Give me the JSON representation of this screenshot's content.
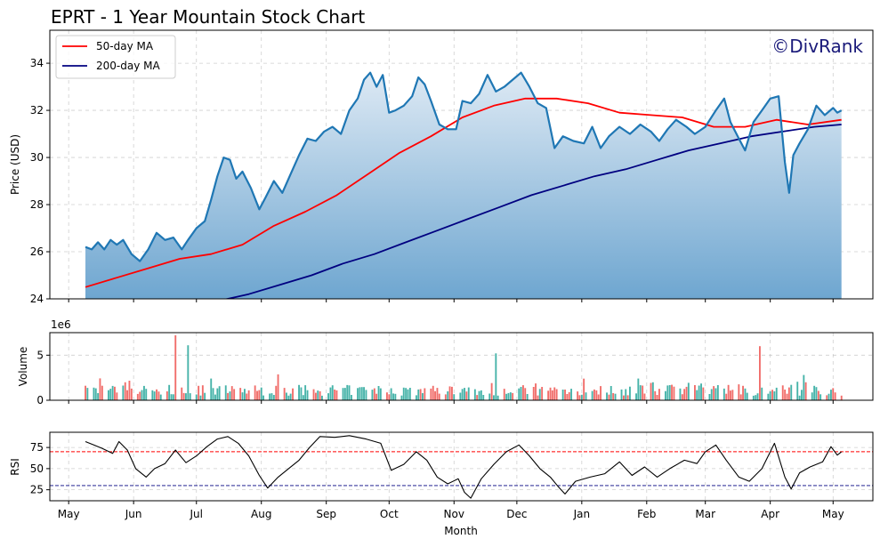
{
  "title": "EPRT - 1 Year Mountain Stock Chart",
  "watermark": "©DivRank",
  "colors": {
    "price_line": "#1f77b4",
    "area_top": "#dde9f4",
    "area_bottom": "#6ea6d0",
    "ma50": "#ff0000",
    "ma200": "#000080",
    "vol_up": "#26a69a",
    "vol_down": "#ef5350",
    "rsi_line": "#000000",
    "rsi_over": "#ff0000",
    "rsi_under": "#000080"
  },
  "chart_data": [
    {
      "panel": "price",
      "type": "area",
      "ylabel": "Price (USD)",
      "ylim": [
        24,
        35.4
      ],
      "yticks": [
        24,
        26,
        28,
        30,
        32,
        34
      ],
      "grid": true,
      "legend_position": "top-left",
      "legend": [
        "50-day MA",
        "200-day MA"
      ],
      "series": [
        {
          "name": "Price",
          "points": [
            [
              "2024-05-09",
              26.2
            ],
            [
              "2024-05-12",
              26.1
            ],
            [
              "2024-05-15",
              26.4
            ],
            [
              "2024-05-18",
              26.1
            ],
            [
              "2024-05-21",
              26.5
            ],
            [
              "2024-05-24",
              26.3
            ],
            [
              "2024-05-27",
              26.5
            ],
            [
              "2024-05-31",
              25.9
            ],
            [
              "2024-06-04",
              25.6
            ],
            [
              "2024-06-08",
              26.1
            ],
            [
              "2024-06-12",
              26.8
            ],
            [
              "2024-06-16",
              26.5
            ],
            [
              "2024-06-20",
              26.6
            ],
            [
              "2024-06-24",
              26.1
            ],
            [
              "2024-06-27",
              26.5
            ],
            [
              "2024-07-01",
              27.0
            ],
            [
              "2024-07-05",
              27.3
            ],
            [
              "2024-07-08",
              28.2
            ],
            [
              "2024-07-11",
              29.2
            ],
            [
              "2024-07-14",
              30.0
            ],
            [
              "2024-07-17",
              29.9
            ],
            [
              "2024-07-20",
              29.1
            ],
            [
              "2024-07-23",
              29.4
            ],
            [
              "2024-07-27",
              28.7
            ],
            [
              "2024-07-31",
              27.8
            ],
            [
              "2024-08-03",
              28.3
            ],
            [
              "2024-08-07",
              29.0
            ],
            [
              "2024-08-11",
              28.5
            ],
            [
              "2024-08-15",
              29.3
            ],
            [
              "2024-08-19",
              30.1
            ],
            [
              "2024-08-23",
              30.8
            ],
            [
              "2024-08-27",
              30.7
            ],
            [
              "2024-08-31",
              31.1
            ],
            [
              "2024-09-04",
              31.3
            ],
            [
              "2024-09-08",
              31.0
            ],
            [
              "2024-09-12",
              32.0
            ],
            [
              "2024-09-16",
              32.5
            ],
            [
              "2024-09-19",
              33.3
            ],
            [
              "2024-09-22",
              33.6
            ],
            [
              "2024-09-25",
              33.0
            ],
            [
              "2024-09-28",
              33.5
            ],
            [
              "2024-10-01",
              31.9
            ],
            [
              "2024-10-04",
              32.0
            ],
            [
              "2024-10-08",
              32.2
            ],
            [
              "2024-10-12",
              32.6
            ],
            [
              "2024-10-15",
              33.4
            ],
            [
              "2024-10-18",
              33.1
            ],
            [
              "2024-10-21",
              32.4
            ],
            [
              "2024-10-25",
              31.4
            ],
            [
              "2024-10-29",
              31.2
            ],
            [
              "2024-11-02",
              31.2
            ],
            [
              "2024-11-05",
              32.4
            ],
            [
              "2024-11-09",
              32.3
            ],
            [
              "2024-11-13",
              32.7
            ],
            [
              "2024-11-17",
              33.5
            ],
            [
              "2024-11-21",
              32.8
            ],
            [
              "2024-11-25",
              33.0
            ],
            [
              "2024-11-29",
              33.3
            ],
            [
              "2024-12-03",
              33.6
            ],
            [
              "2024-12-07",
              33.0
            ],
            [
              "2024-12-11",
              32.3
            ],
            [
              "2024-12-15",
              32.1
            ],
            [
              "2024-12-19",
              30.4
            ],
            [
              "2024-12-23",
              30.9
            ],
            [
              "2024-12-28",
              30.7
            ],
            [
              "2025-01-02",
              30.6
            ],
            [
              "2025-01-06",
              31.3
            ],
            [
              "2025-01-10",
              30.4
            ],
            [
              "2025-01-14",
              30.9
            ],
            [
              "2025-01-19",
              31.3
            ],
            [
              "2025-01-24",
              31.0
            ],
            [
              "2025-01-29",
              31.4
            ],
            [
              "2025-02-03",
              31.1
            ],
            [
              "2025-02-07",
              30.7
            ],
            [
              "2025-02-11",
              31.2
            ],
            [
              "2025-02-15",
              31.6
            ],
            [
              "2025-02-20",
              31.3
            ],
            [
              "2025-02-24",
              31.0
            ],
            [
              "2025-03-01",
              31.3
            ],
            [
              "2025-03-06",
              32.0
            ],
            [
              "2025-03-10",
              32.5
            ],
            [
              "2025-03-13",
              31.5
            ],
            [
              "2025-03-17",
              30.8
            ],
            [
              "2025-03-20",
              30.3
            ],
            [
              "2025-03-24",
              31.5
            ],
            [
              "2025-03-28",
              32.0
            ],
            [
              "2025-04-01",
              32.5
            ],
            [
              "2025-04-05",
              32.6
            ],
            [
              "2025-04-08",
              29.8
            ],
            [
              "2025-04-10",
              28.5
            ],
            [
              "2025-04-12",
              30.1
            ],
            [
              "2025-04-15",
              30.6
            ],
            [
              "2025-04-19",
              31.2
            ],
            [
              "2025-04-23",
              32.2
            ],
            [
              "2025-04-27",
              31.8
            ],
            [
              "2025-05-01",
              32.1
            ],
            [
              "2025-05-03",
              31.9
            ],
            [
              "2025-05-05",
              32.0
            ]
          ]
        },
        {
          "name": "50-day MA",
          "points": [
            [
              "2024-05-09",
              24.5
            ],
            [
              "2024-05-24",
              24.9
            ],
            [
              "2024-06-08",
              25.3
            ],
            [
              "2024-06-23",
              25.7
            ],
            [
              "2024-07-08",
              25.9
            ],
            [
              "2024-07-23",
              26.3
            ],
            [
              "2024-08-07",
              27.1
            ],
            [
              "2024-08-22",
              27.7
            ],
            [
              "2024-09-06",
              28.4
            ],
            [
              "2024-09-21",
              29.3
            ],
            [
              "2024-10-06",
              30.2
            ],
            [
              "2024-10-21",
              30.9
            ],
            [
              "2024-11-05",
              31.7
            ],
            [
              "2024-11-20",
              32.2
            ],
            [
              "2024-12-05",
              32.5
            ],
            [
              "2024-12-20",
              32.5
            ],
            [
              "2025-01-04",
              32.3
            ],
            [
              "2025-01-19",
              31.9
            ],
            [
              "2025-02-03",
              31.8
            ],
            [
              "2025-02-18",
              31.7
            ],
            [
              "2025-03-05",
              31.3
            ],
            [
              "2025-03-20",
              31.3
            ],
            [
              "2025-04-04",
              31.6
            ],
            [
              "2025-04-19",
              31.4
            ],
            [
              "2025-05-05",
              31.6
            ]
          ]
        },
        {
          "name": "200-day MA",
          "points": [
            [
              "2024-07-11",
              23.9
            ],
            [
              "2024-07-26",
              24.2
            ],
            [
              "2024-08-10",
              24.6
            ],
            [
              "2024-08-25",
              25.0
            ],
            [
              "2024-09-09",
              25.5
            ],
            [
              "2024-09-24",
              25.9
            ],
            [
              "2024-10-09",
              26.4
            ],
            [
              "2024-10-24",
              26.9
            ],
            [
              "2024-11-08",
              27.4
            ],
            [
              "2024-11-23",
              27.9
            ],
            [
              "2024-12-08",
              28.4
            ],
            [
              "2024-12-23",
              28.8
            ],
            [
              "2025-01-07",
              29.2
            ],
            [
              "2025-01-22",
              29.5
            ],
            [
              "2025-02-06",
              29.9
            ],
            [
              "2025-02-21",
              30.3
            ],
            [
              "2025-03-08",
              30.6
            ],
            [
              "2025-03-23",
              30.9
            ],
            [
              "2025-04-07",
              31.1
            ],
            [
              "2025-04-22",
              31.3
            ],
            [
              "2025-05-05",
              31.4
            ]
          ]
        }
      ]
    },
    {
      "panel": "volume",
      "type": "bar",
      "ylabel": "Volume",
      "scale_label": "1e6",
      "ylim": [
        0,
        7.5
      ],
      "yticks": [
        0,
        5
      ],
      "grid": true,
      "notable_bars": [
        {
          "x": "2024-06-21",
          "value": 7.2,
          "direction": "down"
        },
        {
          "x": "2024-06-27",
          "value": 6.1,
          "direction": "up"
        },
        {
          "x": "2024-11-21",
          "value": 5.2,
          "direction": "up"
        },
        {
          "x": "2025-03-27",
          "value": 6.0,
          "direction": "down"
        }
      ]
    },
    {
      "panel": "rsi",
      "type": "line",
      "ylabel": "RSI",
      "xlabel": "Month",
      "ylim": [
        12,
        93
      ],
      "yticks": [
        25,
        50,
        75
      ],
      "overbought": 70,
      "oversold": 30,
      "grid": true,
      "points": [
        [
          "2024-05-09",
          82
        ],
        [
          "2024-05-13",
          78
        ],
        [
          "2024-05-17",
          74
        ],
        [
          "2024-05-22",
          68
        ],
        [
          "2024-05-25",
          82
        ],
        [
          "2024-05-29",
          72
        ],
        [
          "2024-06-02",
          50
        ],
        [
          "2024-06-07",
          40
        ],
        [
          "2024-06-11",
          50
        ],
        [
          "2024-06-16",
          56
        ],
        [
          "2024-06-21",
          72
        ],
        [
          "2024-06-26",
          57
        ],
        [
          "2024-07-01",
          65
        ],
        [
          "2024-07-06",
          76
        ],
        [
          "2024-07-11",
          85
        ],
        [
          "2024-07-16",
          88
        ],
        [
          "2024-07-21",
          80
        ],
        [
          "2024-07-26",
          65
        ],
        [
          "2024-07-31",
          42
        ],
        [
          "2024-08-04",
          27
        ],
        [
          "2024-08-09",
          40
        ],
        [
          "2024-08-14",
          50
        ],
        [
          "2024-08-19",
          60
        ],
        [
          "2024-08-24",
          75
        ],
        [
          "2024-08-29",
          88
        ],
        [
          "2024-09-05",
          87
        ],
        [
          "2024-09-12",
          89
        ],
        [
          "2024-09-20",
          85
        ],
        [
          "2024-09-27",
          80
        ],
        [
          "2024-10-02",
          48
        ],
        [
          "2024-10-08",
          55
        ],
        [
          "2024-10-14",
          70
        ],
        [
          "2024-10-19",
          60
        ],
        [
          "2024-10-24",
          40
        ],
        [
          "2024-10-29",
          32
        ],
        [
          "2024-11-03",
          38
        ],
        [
          "2024-11-06",
          22
        ],
        [
          "2024-11-09",
          15
        ],
        [
          "2024-11-14",
          38
        ],
        [
          "2024-11-20",
          55
        ],
        [
          "2024-11-26",
          70
        ],
        [
          "2024-12-02",
          78
        ],
        [
          "2024-12-07",
          65
        ],
        [
          "2024-12-12",
          50
        ],
        [
          "2024-12-17",
          40
        ],
        [
          "2024-12-21",
          28
        ],
        [
          "2024-12-24",
          20
        ],
        [
          "2024-12-29",
          35
        ],
        [
          "2025-01-05",
          40
        ],
        [
          "2025-01-12",
          44
        ],
        [
          "2025-01-19",
          58
        ],
        [
          "2025-01-25",
          42
        ],
        [
          "2025-01-31",
          52
        ],
        [
          "2025-02-06",
          40
        ],
        [
          "2025-02-12",
          50
        ],
        [
          "2025-02-19",
          60
        ],
        [
          "2025-02-25",
          56
        ],
        [
          "2025-03-01",
          70
        ],
        [
          "2025-03-06",
          78
        ],
        [
          "2025-03-11",
          60
        ],
        [
          "2025-03-17",
          40
        ],
        [
          "2025-03-22",
          35
        ],
        [
          "2025-03-28",
          50
        ],
        [
          "2025-04-03",
          80
        ],
        [
          "2025-04-08",
          40
        ],
        [
          "2025-04-11",
          26
        ],
        [
          "2025-04-15",
          45
        ],
        [
          "2025-04-20",
          52
        ],
        [
          "2025-04-26",
          58
        ],
        [
          "2025-04-30",
          76
        ],
        [
          "2025-05-03",
          66
        ],
        [
          "2025-05-05",
          70
        ]
      ]
    }
  ],
  "x_axis": {
    "start": "2024-04-22",
    "end": "2025-05-20",
    "ticks": [
      {
        "date": "2024-05-01",
        "label": "May"
      },
      {
        "date": "2024-06-01",
        "label": "Jun"
      },
      {
        "date": "2024-07-01",
        "label": "Jul"
      },
      {
        "date": "2024-08-01",
        "label": "Aug"
      },
      {
        "date": "2024-09-01",
        "label": "Sep"
      },
      {
        "date": "2024-10-01",
        "label": "Oct"
      },
      {
        "date": "2024-11-01",
        "label": "Nov"
      },
      {
        "date": "2024-12-01",
        "label": "Dec"
      },
      {
        "date": "2025-01-01",
        "label": "Jan"
      },
      {
        "date": "2025-02-01",
        "label": "Feb"
      },
      {
        "date": "2025-03-01",
        "label": "Mar"
      },
      {
        "date": "2025-04-01",
        "label": "Apr"
      },
      {
        "date": "2025-05-01",
        "label": "May"
      }
    ]
  }
}
